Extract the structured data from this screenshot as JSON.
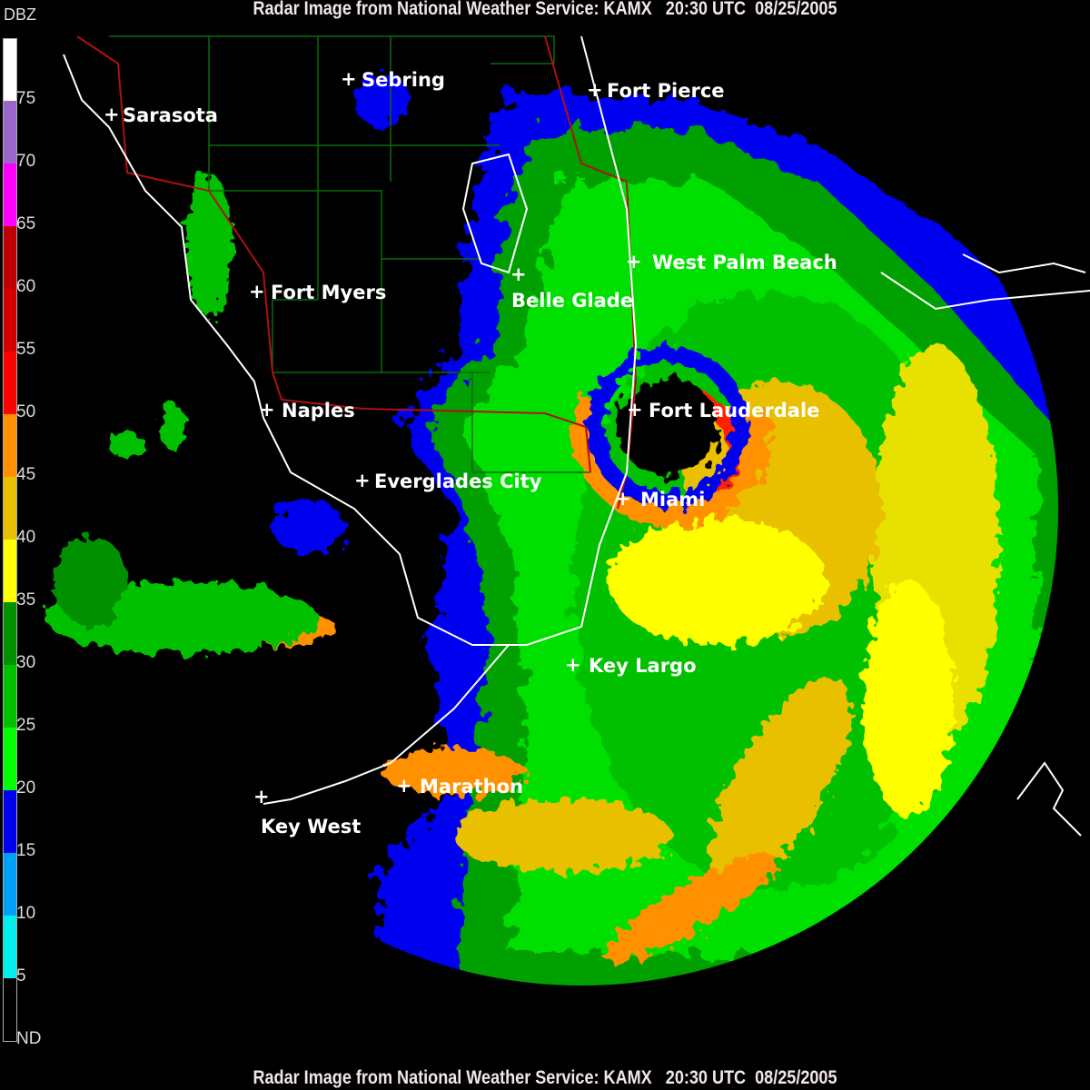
{
  "title": "Radar Image from National Weather Service: KAMX   20:30 UTC  08/25/2005",
  "legend": {
    "unit": "DBZ",
    "bands": [
      {
        "label": "75",
        "color": "#ffffff"
      },
      {
        "label": "70",
        "color": "#9966cc"
      },
      {
        "label": "65",
        "color": "#ff00ff"
      },
      {
        "label": "60",
        "color": "#c00000"
      },
      {
        "label": "55",
        "color": "#d40000"
      },
      {
        "label": "50",
        "color": "#ff0000"
      },
      {
        "label": "45",
        "color": "#ff9000"
      },
      {
        "label": "40",
        "color": "#e8c000"
      },
      {
        "label": "35",
        "color": "#ffff00"
      },
      {
        "label": "30",
        "color": "#009000"
      },
      {
        "label": "25",
        "color": "#00c000"
      },
      {
        "label": "20",
        "color": "#00ff00"
      },
      {
        "label": "15",
        "color": "#0000f0"
      },
      {
        "label": "10",
        "color": "#00a0f6"
      },
      {
        "label": "5",
        "color": "#00eeee"
      },
      {
        "label": "ND",
        "color": "#000000"
      }
    ]
  },
  "cities": [
    {
      "name": "Sebring"
    },
    {
      "name": "Fort Pierce"
    },
    {
      "name": "Sarasota"
    },
    {
      "name": "West Palm Beach"
    },
    {
      "name": "Fort Myers"
    },
    {
      "name": "Belle Glade"
    },
    {
      "name": "Naples"
    },
    {
      "name": "Fort Lauderdale"
    },
    {
      "name": "Everglades City"
    },
    {
      "name": "Miami"
    },
    {
      "name": "Key Largo"
    },
    {
      "name": "Marathon"
    },
    {
      "name": "Key West"
    }
  ],
  "colors": {
    "coastline": "#ffffff",
    "county_lines": "#0a6a0a",
    "state_roads": "#b01010"
  }
}
